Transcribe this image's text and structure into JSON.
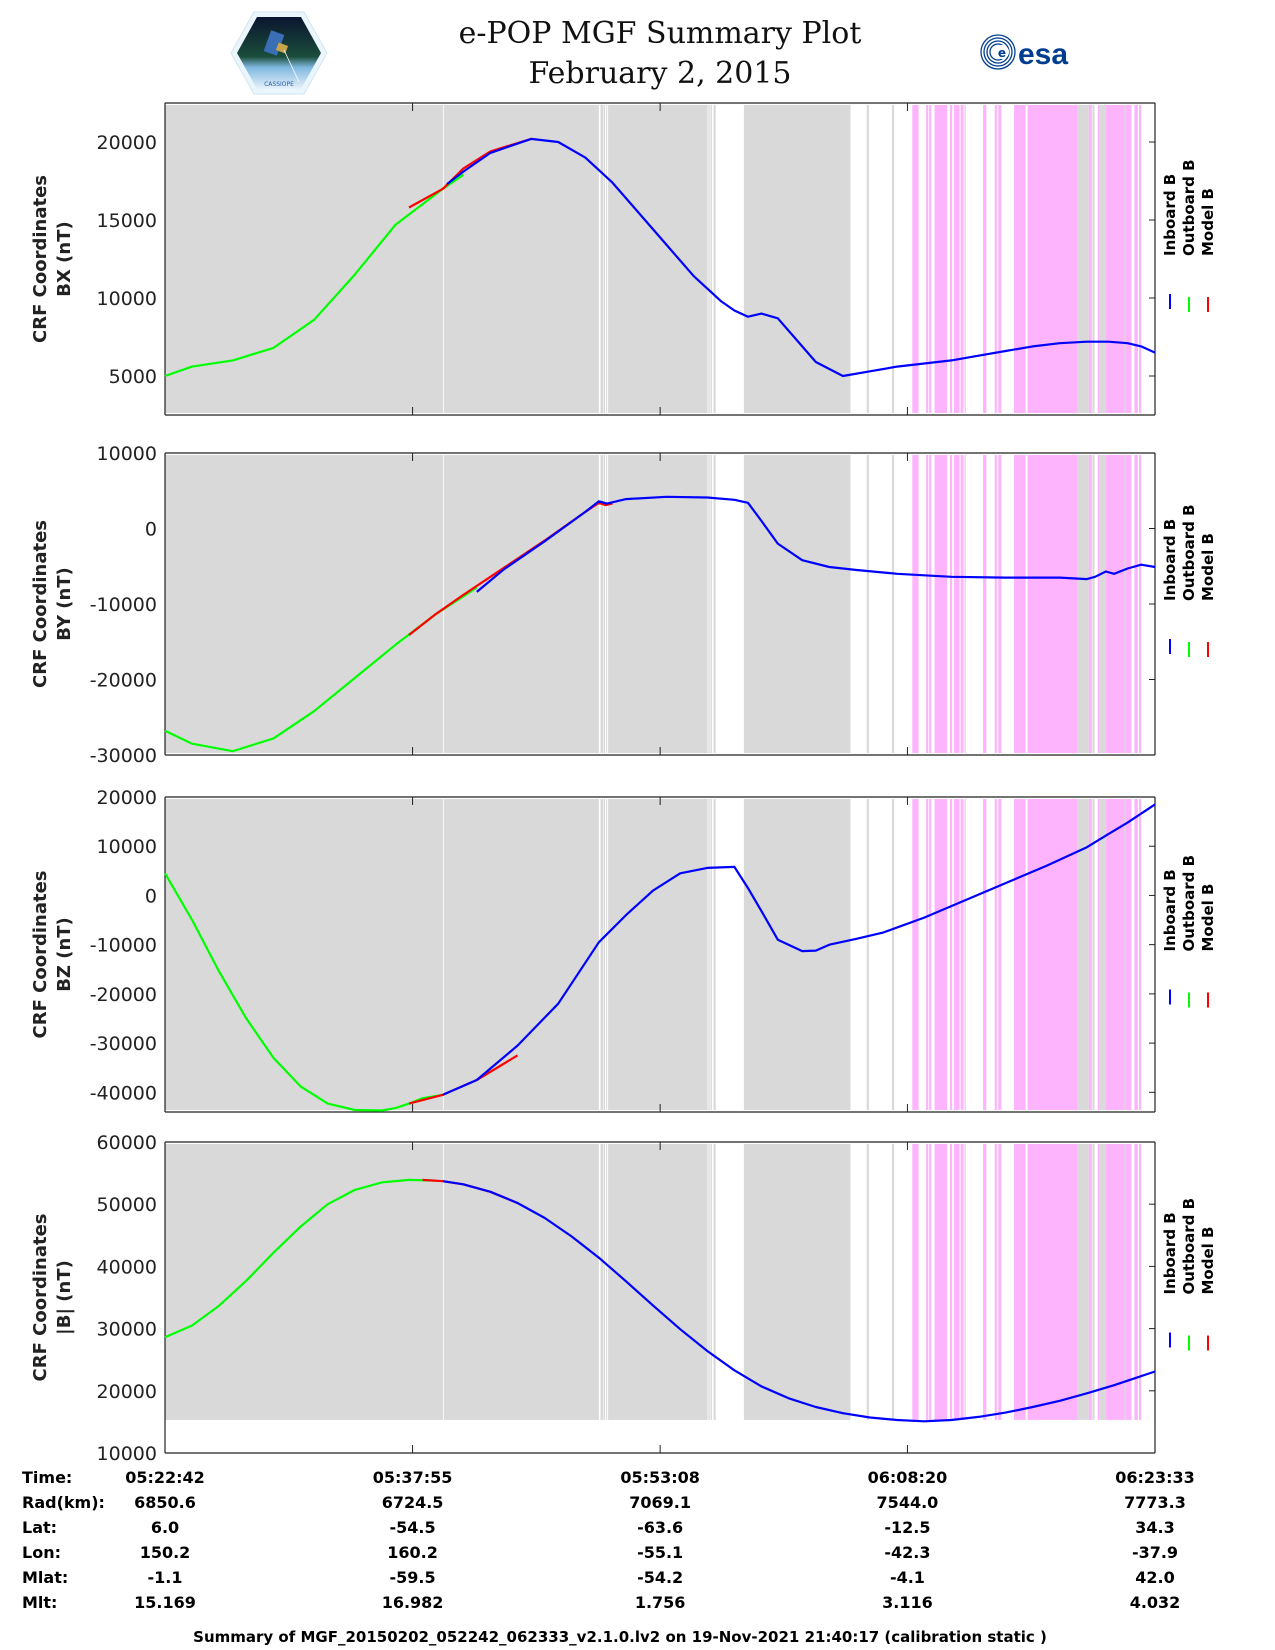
{
  "header": {
    "title_line1": "e-POP MGF Summary Plot",
    "title_line2": "February 2, 2015",
    "left_logo": "cassiope-mission-badge-icon",
    "right_logo": "esa-logo-icon",
    "right_logo_text": "esa",
    "left_logo_caption": "CASSIOPE"
  },
  "colors": {
    "inboard": "#0000ff",
    "outboard": "#00ff00",
    "model": "#ff0000",
    "gray_band": "#d9d9d9",
    "pink_band": "#fdb4fd",
    "axis": "#222222"
  },
  "chart_data": {
    "type": "line",
    "x_unit": "seconds since 05:22:42",
    "x_range": [
      0,
      3651
    ],
    "x_ticks": [
      0,
      913,
      1826,
      2738,
      3651
    ],
    "x_tick_labels": [
      "05:22:42",
      "05:37:55",
      "05:53:08",
      "06:08:20",
      "06:23:33"
    ],
    "legend": {
      "placement": "right",
      "entries": [
        {
          "label": "Inboard B",
          "color": "#0000ff"
        },
        {
          "label": "Outboard B",
          "color": "#00ff00"
        },
        {
          "label": "Model B",
          "color": "#ff0000"
        }
      ]
    },
    "bands": {
      "gray": [
        [
          0,
          1025
        ],
        [
          1028,
          1600
        ],
        [
          1606,
          1617
        ],
        [
          1619,
          1623
        ],
        [
          1627,
          1630
        ],
        [
          1634,
          2001
        ],
        [
          2004,
          2009
        ],
        [
          2012,
          2017
        ],
        [
          2023,
          2031
        ],
        [
          2135,
          2528
        ],
        [
          2588,
          2596
        ],
        [
          2681,
          2689
        ],
        [
          3080,
          3084
        ],
        [
          3216,
          3228
        ],
        [
          3243,
          3250
        ],
        [
          3366,
          3407
        ],
        [
          3420,
          3428
        ],
        [
          3447,
          3469
        ],
        [
          3533,
          3541
        ]
      ],
      "pink": [
        [
          2756,
          2779
        ],
        [
          2807,
          2815
        ],
        [
          2818,
          2826
        ],
        [
          2838,
          2884
        ],
        [
          2895,
          2903
        ],
        [
          2910,
          2930
        ],
        [
          2934,
          2945
        ],
        [
          2949,
          2953
        ],
        [
          3017,
          3029
        ],
        [
          3060,
          3068
        ],
        [
          3073,
          3084
        ],
        [
          3131,
          3174
        ],
        [
          3181,
          3366
        ],
        [
          3407,
          3418
        ],
        [
          3440,
          3447
        ],
        [
          3469,
          3538
        ],
        [
          3541,
          3564
        ],
        [
          3575,
          3588
        ],
        [
          3592,
          3600
        ]
      ]
    },
    "panels": [
      {
        "ylabel_line1": "CRF Coordinates",
        "ylabel_line2": "BX (nT)",
        "ylim": [
          2500,
          22500
        ],
        "band_ylim": [
          2500,
          22500
        ],
        "y_ticks": [
          5000,
          10000,
          15000,
          20000
        ],
        "y_tick_labels": [
          "5000",
          "10000",
          "15000",
          "20000"
        ],
        "series": [
          {
            "name": "Outboard B",
            "x": [
              0,
              100,
              250,
              400,
              550,
              700,
              850,
              1025,
              1100
            ],
            "y": [
              5000,
              5600,
              6000,
              6800,
              8600,
              11500,
              14700,
              17000,
              17900
            ]
          },
          {
            "name": "Model B",
            "x": [
              900,
              1025,
              1100,
              1200,
              1350
            ],
            "y": [
              15800,
              17000,
              18300,
              19400,
              20200
            ]
          },
          {
            "name": "Inboard B",
            "x": [
              1040,
              1100,
              1200,
              1350,
              1450,
              1550,
              1650,
              1800,
              1950,
              2050,
              2100,
              2150,
              2200,
              2260,
              2330,
              2400,
              2500,
              2600,
              2700,
              2800,
              2900,
              3000,
              3100,
              3200,
              3300,
              3400,
              3480,
              3550,
              3600,
              3651
            ],
            "y": [
              17300,
              18100,
              19300,
              20200,
              20000,
              19000,
              17400,
              14400,
              11400,
              9800,
              9200,
              8800,
              9000,
              8700,
              7300,
              5900,
              5000,
              5300,
              5600,
              5800,
              6000,
              6300,
              6600,
              6900,
              7100,
              7200,
              7200,
              7100,
              6900,
              6500
            ]
          }
        ]
      },
      {
        "ylabel_line1": "CRF Coordinates",
        "ylabel_line2": "BY (nT)",
        "ylim": [
          -30000,
          10000
        ],
        "band_ylim": [
          -30000,
          10000
        ],
        "y_ticks": [
          -30000,
          -20000,
          -10000,
          0,
          10000
        ],
        "y_tick_labels": [
          "-30000",
          "-20000",
          "-10000",
          "0",
          "10000"
        ],
        "series": [
          {
            "name": "Outboard B",
            "x": [
              0,
              100,
              250,
              400,
              550,
              700,
              850,
              1000,
              1100,
              1150
            ],
            "y": [
              -26800,
              -28500,
              -29500,
              -27800,
              -24200,
              -19800,
              -15400,
              -11300,
              -9000,
              -7800
            ]
          },
          {
            "name": "Model B",
            "x": [
              900,
              1000,
              1100,
              1250,
              1400,
              1550,
              1600,
              1625,
              1650
            ],
            "y": [
              -14100,
              -11300,
              -8800,
              -5200,
              -1600,
              2200,
              3400,
              3100,
              3300
            ]
          },
          {
            "name": "Inboard B",
            "x": [
              1150,
              1250,
              1400,
              1550,
              1600,
              1630,
              1700,
              1850,
              2000,
              2100,
              2150,
              2200,
              2260,
              2350,
              2450,
              2550,
              2700,
              2900,
              3100,
              3300,
              3400,
              3430,
              3470,
              3500,
              3550,
              3600,
              3651
            ],
            "y": [
              -8400,
              -5400,
              -1700,
              2200,
              3600,
              3300,
              3900,
              4200,
              4100,
              3800,
              3400,
              1000,
              -2000,
              -4200,
              -5100,
              -5500,
              -6000,
              -6400,
              -6500,
              -6500,
              -6700,
              -6400,
              -5700,
              -6000,
              -5300,
              -4800,
              -5100
            ]
          }
        ]
      },
      {
        "ylabel_line1": "CRF Coordinates",
        "ylabel_line2": "BZ (nT)",
        "ylim": [
          -44000,
          20000
        ],
        "band_ylim": [
          -44000,
          20000
        ],
        "y_ticks": [
          -40000,
          -30000,
          -20000,
          -10000,
          0,
          10000,
          20000
        ],
        "y_tick_labels": [
          "-40000",
          "-30000",
          "-20000",
          "-10000",
          "0",
          "10000",
          "20000"
        ],
        "series": [
          {
            "name": "Outboard B",
            "x": [
              0,
              100,
              200,
              300,
              400,
              500,
              600,
              700,
              800,
              850,
              900,
              950,
              1025
            ],
            "y": [
              4500,
              -5000,
              -15500,
              -25000,
              -33000,
              -38800,
              -42300,
              -43600,
              -43700,
              -43200,
              -42300,
              -41200,
              -40500
            ]
          },
          {
            "name": "Model B",
            "x": [
              900,
              1025,
              1150,
              1300
            ],
            "y": [
              -42300,
              -40500,
              -37500,
              -32500
            ]
          },
          {
            "name": "Inboard B",
            "x": [
              1025,
              1150,
              1300,
              1450,
              1600,
              1700,
              1800,
              1900,
              2000,
              2100,
              2150,
              2200,
              2260,
              2350,
              2400,
              2450,
              2550,
              2650,
              2800,
              2950,
              3100,
              3250,
              3400,
              3480,
              3550,
              3651
            ],
            "y": [
              -40500,
              -37500,
              -30500,
              -22000,
              -9500,
              -4000,
              1000,
              4500,
              5600,
              5800,
              1500,
              -3200,
              -9000,
              -11300,
              -11200,
              -10000,
              -8800,
              -7500,
              -4500,
              -1000,
              2500,
              6000,
              9800,
              12500,
              14800,
              18500
            ]
          }
        ]
      },
      {
        "ylabel_line1": "CRF Coordinates",
        "ylabel_line2": "|B| (nT)",
        "ylim": [
          10000,
          60000
        ],
        "band_ylim": [
          15000,
          60000
        ],
        "y_ticks": [
          10000,
          20000,
          30000,
          40000,
          50000,
          60000
        ],
        "y_tick_labels": [
          "10000",
          "20000",
          "30000",
          "40000",
          "50000",
          "60000"
        ],
        "series": [
          {
            "name": "Outboard B",
            "x": [
              0,
              100,
              200,
              300,
              400,
              500,
              600,
              700,
              800,
              900,
              1000
            ],
            "y": [
              28600,
              30500,
              33700,
              37700,
              42200,
              46400,
              50000,
              52300,
              53500,
              53900,
              53800
            ]
          },
          {
            "name": "Model B",
            "x": [
              950,
              1025,
              1100,
              1200,
              1300
            ],
            "y": [
              53900,
              53700,
              53200,
              52000,
              50200
            ]
          },
          {
            "name": "Inboard B",
            "x": [
              1025,
              1100,
              1200,
              1300,
              1400,
              1500,
              1600,
              1700,
              1800,
              1900,
              2000,
              2100,
              2200,
              2300,
              2400,
              2500,
              2600,
              2700,
              2800,
              2900,
              3000,
              3100,
              3200,
              3300,
              3400,
              3500,
              3651
            ],
            "y": [
              53700,
              53200,
              52000,
              50200,
              47800,
              44800,
              41400,
              37600,
              33700,
              29900,
              26400,
              23300,
              20700,
              18800,
              17400,
              16400,
              15700,
              15300,
              15100,
              15300,
              15800,
              16500,
              17400,
              18400,
              19600,
              20900,
              23100
            ]
          }
        ]
      }
    ]
  },
  "info_table": {
    "rows": [
      {
        "label": "Time:",
        "values": [
          "05:22:42",
          "05:37:55",
          "05:53:08",
          "06:08:20",
          "06:23:33"
        ]
      },
      {
        "label": "Rad(km):",
        "values": [
          "6850.6",
          "6724.5",
          "7069.1",
          "7544.0",
          "7773.3"
        ]
      },
      {
        "label": "Lat:",
        "values": [
          "6.0",
          "-54.5",
          "-63.6",
          "-12.5",
          "34.3"
        ]
      },
      {
        "label": "Lon:",
        "values": [
          "150.2",
          "160.2",
          "-55.1",
          "-42.3",
          "-37.9"
        ]
      },
      {
        "label": "Mlat:",
        "values": [
          "-1.1",
          "-59.5",
          "-54.2",
          "-4.1",
          "42.0"
        ]
      },
      {
        "label": "Mlt:",
        "values": [
          "15.169",
          "16.982",
          "1.756",
          "3.116",
          "4.032"
        ]
      }
    ]
  },
  "footer": {
    "text": "Summary of MGF_20150202_052242_062333_v2.1.0.lv2 on 19-Nov-2021 21:40:17 (calibration static )"
  }
}
